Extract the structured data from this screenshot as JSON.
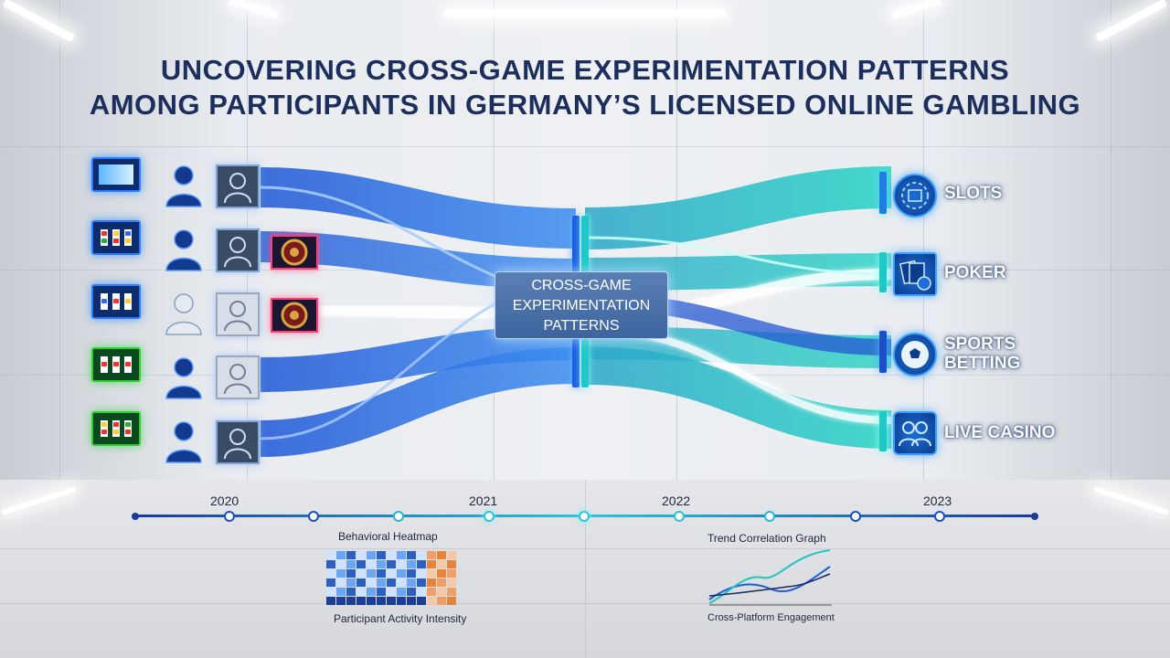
{
  "title_line1": "UNCOVERING CROSS-GAME EXPERIMENTATION PATTERNS",
  "title_line2": "AMONG PARTICIPANTS IN GERMANY’S LICENSED ONLINE GAMBLING",
  "center": {
    "line1": "CROSS-GAME",
    "line2": "EXPERIMENTATION",
    "line3": "PATTERNS"
  },
  "categories": [
    {
      "label": "SLOTS",
      "icon": "slot-chip-icon"
    },
    {
      "label": "POKER",
      "icon": "poker-cards-icon"
    },
    {
      "label": "SPORTS BETTING",
      "line1": "SPORTS",
      "line2": "BETTING",
      "icon": "soccer-ball-icon"
    },
    {
      "label": "LIVE CASINO",
      "icon": "live-dealer-icon"
    }
  ],
  "timeline": {
    "years": [
      "2020",
      "2021",
      "2022",
      "2023"
    ]
  },
  "heatmap": {
    "title": "Behavioral Heatmap",
    "caption": "Participant Activity Intensity"
  },
  "trend": {
    "title": "Trend Correlation Graph",
    "caption": "Cross-Platform Engagement"
  },
  "colors": {
    "blue_flow": "#1e5fd8",
    "teal_flow": "#22c4c0",
    "title": "#1c2f5c"
  }
}
